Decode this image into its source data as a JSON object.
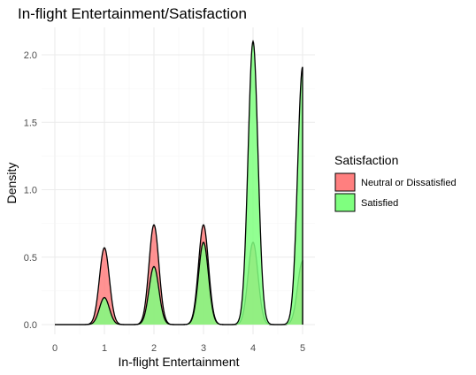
{
  "chart_data": {
    "type": "area",
    "title": "In-flight Entertainment/Satisfaction",
    "xlabel": "In-flight Entertainment",
    "ylabel": "Density",
    "xlim": [
      0,
      5
    ],
    "ylim": [
      0,
      2.2
    ],
    "x_ticks": [
      "0",
      "1",
      "2",
      "3",
      "4",
      "5"
    ],
    "y_ticks": [
      "0.0",
      "0.5",
      "1.0",
      "1.5",
      "2.0"
    ],
    "grid": true,
    "legend": {
      "title": "Satisfaction",
      "placement": "right"
    },
    "series": [
      {
        "name": "Neutral or Dissatisfied",
        "color": "#ff7f7f",
        "peaks": [
          {
            "x": 1,
            "y": 0.57
          },
          {
            "x": 2,
            "y": 0.74
          },
          {
            "x": 3,
            "y": 0.74
          },
          {
            "x": 4,
            "y": 0.61
          },
          {
            "x": 5,
            "y": 0.47
          }
        ]
      },
      {
        "name": "Satisfied",
        "color": "#7fff7f",
        "peaks": [
          {
            "x": 1,
            "y": 0.2
          },
          {
            "x": 2,
            "y": 0.43
          },
          {
            "x": 3,
            "y": 0.61
          },
          {
            "x": 4,
            "y": 2.1
          },
          {
            "x": 5,
            "y": 1.91
          }
        ]
      }
    ]
  }
}
